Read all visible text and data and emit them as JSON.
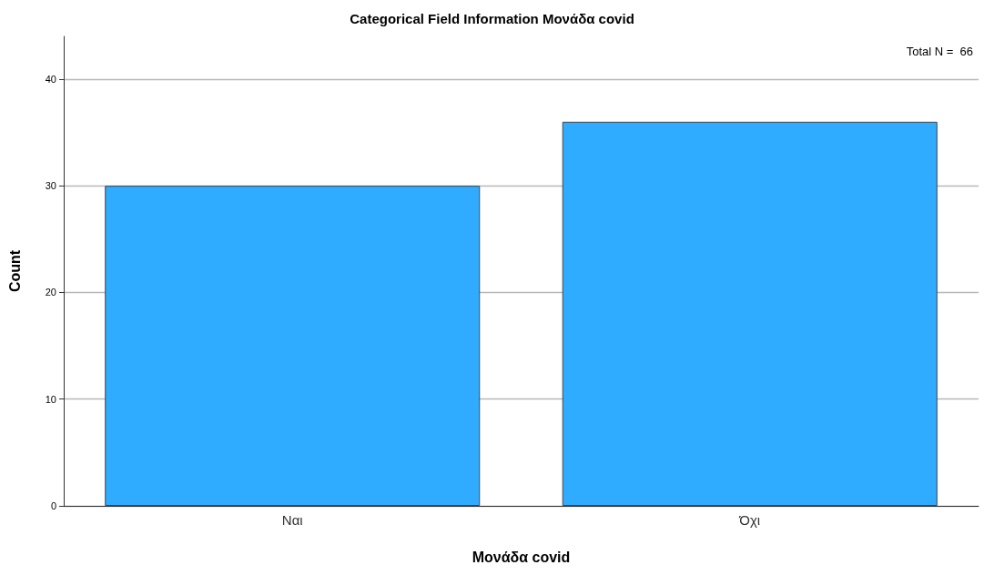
{
  "chart_data": {
    "type": "bar",
    "title": "Categorical Field Information Μονάδα covid",
    "xlabel": "Μονάδα covid",
    "ylabel": "Count",
    "categories": [
      "Ναι",
      "Όχι"
    ],
    "values": [
      30,
      36
    ],
    "color": "#2fabff",
    "ylim": [
      0,
      44
    ],
    "yticks": [
      0,
      10,
      20,
      30,
      40
    ],
    "grid": "y",
    "annotations": [
      "Total N =  66"
    ]
  }
}
